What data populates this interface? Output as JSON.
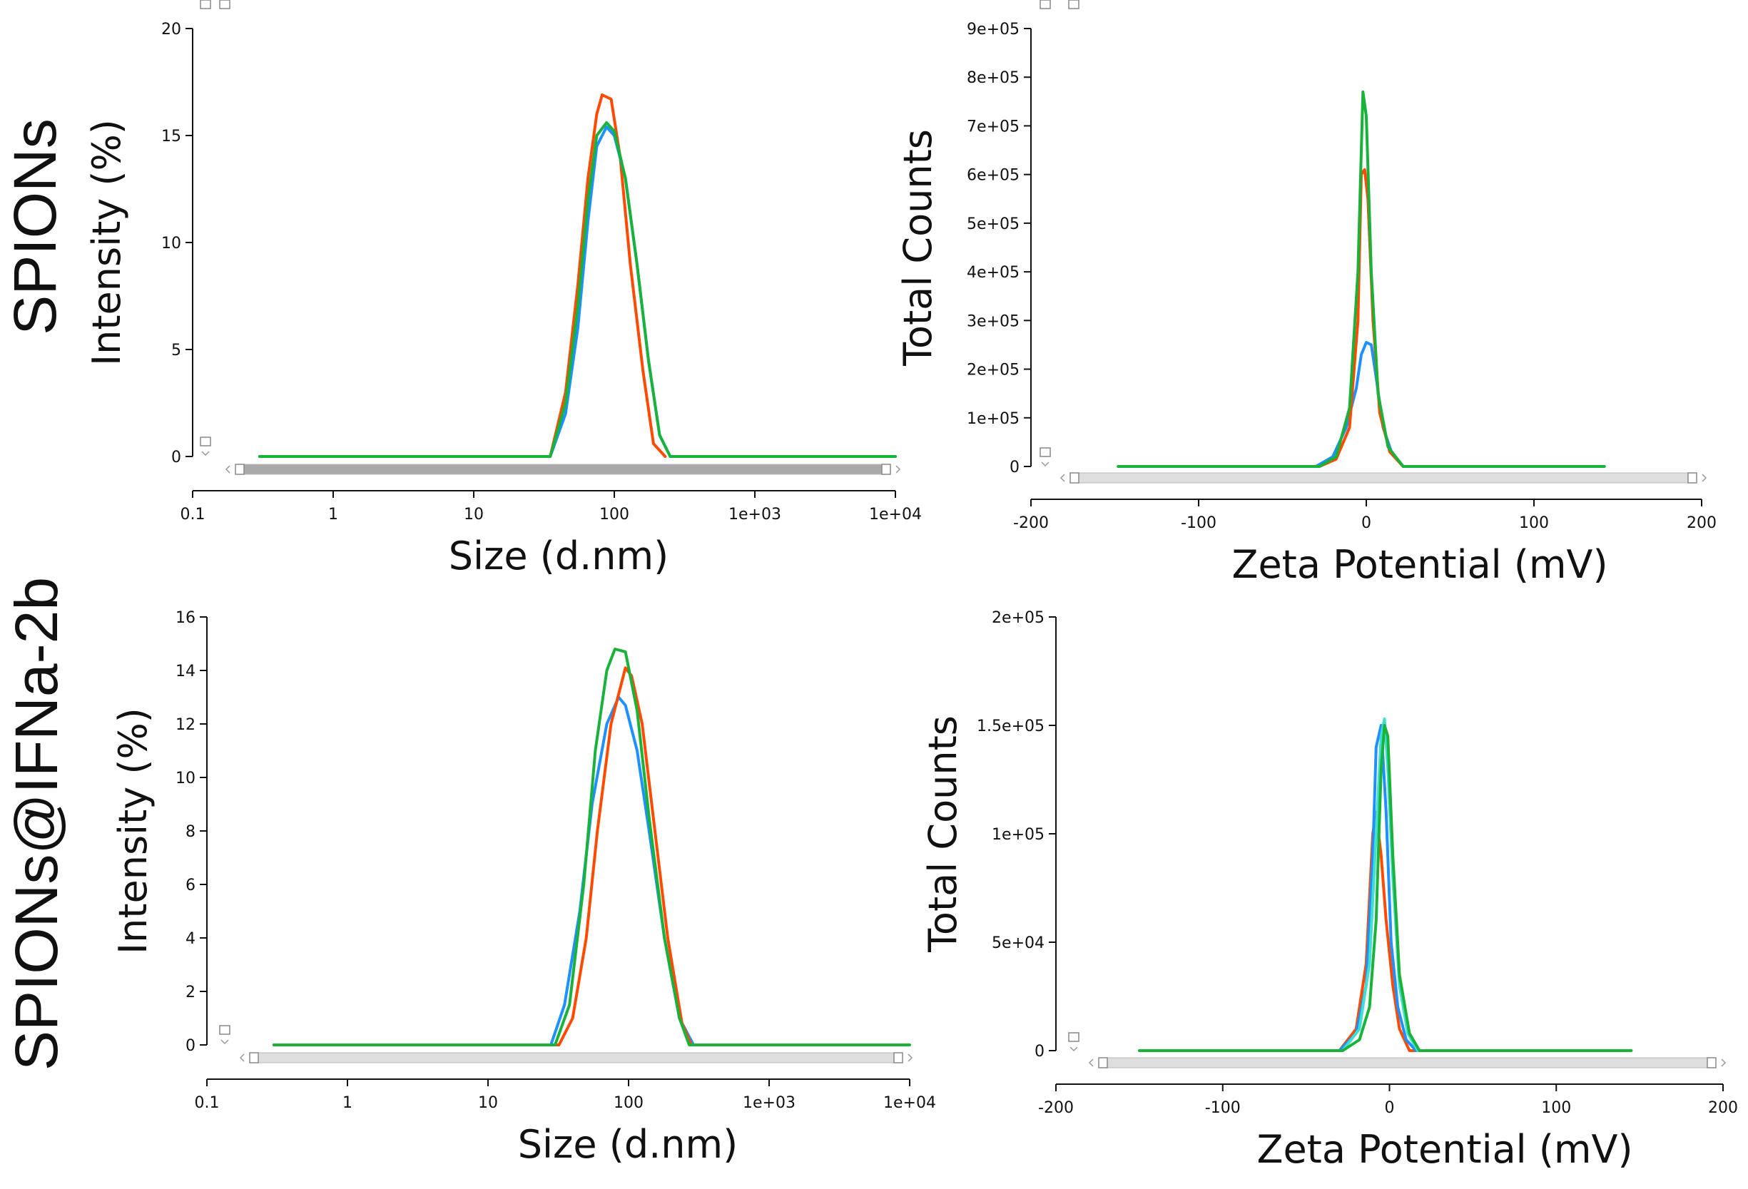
{
  "row_labels": [
    "SPIONs",
    "SPIONs@IFNa-2b"
  ],
  "colors": {
    "red": "#ff4a00",
    "blue": "#1e90ff",
    "green": "#19b23a",
    "cyan": "#40e0d0",
    "axis": "#111111",
    "scrollbar_dark": "#a9a9a9",
    "scrollbar_light": "#dedede"
  },
  "chart_data": [
    {
      "id": "spions-size",
      "type": "line",
      "xscale": "log",
      "xlabel": "Size (d.nm)",
      "ylabel": "Intensity (%)",
      "xlim": [
        0.1,
        10000
      ],
      "ylim": [
        0,
        20
      ],
      "xticks": [
        0.1,
        1,
        10,
        100,
        1000,
        10000
      ],
      "xtick_labels": [
        "0.1",
        "1",
        "10",
        "100",
        "1e+03",
        "1e+04"
      ],
      "yticks": [
        0,
        5,
        10,
        15,
        20
      ],
      "ytick_labels": [
        "0",
        "5",
        "10",
        "15",
        "20"
      ],
      "series": [
        {
          "color": "red",
          "x": [
            0.3,
            35,
            45,
            55,
            65,
            75,
            82,
            95,
            110,
            130,
            160,
            190,
            230
          ],
          "y": [
            0,
            0,
            3,
            8,
            13,
            16,
            16.9,
            16.7,
            14,
            9,
            4,
            0.6,
            0
          ]
        },
        {
          "color": "blue",
          "x": [
            0.3,
            35,
            45,
            55,
            65,
            75,
            88,
            100,
            120,
            145,
            175,
            210,
            250
          ],
          "y": [
            0,
            0,
            2,
            6,
            11,
            14.5,
            15.4,
            15,
            13,
            9,
            4.5,
            1,
            0
          ]
        },
        {
          "color": "green",
          "x": [
            0.3,
            35,
            45,
            55,
            65,
            75,
            88,
            100,
            120,
            145,
            175,
            210,
            250,
            10000
          ],
          "y": [
            0,
            0,
            2.5,
            7,
            12,
            15,
            15.6,
            15.2,
            13,
            9,
            4.5,
            1,
            0,
            0
          ]
        }
      ]
    },
    {
      "id": "spions-zeta",
      "type": "line",
      "xlabel": "Zeta Potential (mV)",
      "ylabel": "Total Counts",
      "xlim": [
        -200,
        200
      ],
      "ylim": [
        0,
        900000
      ],
      "xticks": [
        -200,
        -100,
        0,
        100,
        200
      ],
      "xtick_labels": [
        "-200",
        "-100",
        "0",
        "100",
        "200"
      ],
      "yticks": [
        0,
        100000,
        200000,
        300000,
        400000,
        500000,
        600000,
        700000,
        800000,
        900000
      ],
      "ytick_labels": [
        "0",
        "1e+05",
        "2e+05",
        "3e+05",
        "4e+05",
        "5e+05",
        "6e+05",
        "7e+05",
        "8e+05",
        "9e+05"
      ],
      "series": [
        {
          "color": "blue",
          "x": [
            -30,
            -20,
            -12,
            -6,
            -3,
            0,
            3,
            6,
            10,
            15,
            22
          ],
          "y": [
            0,
            20000,
            80000,
            160000,
            230000,
            255000,
            250000,
            180000,
            80000,
            30000,
            0
          ]
        },
        {
          "color": "red",
          "x": [
            -28,
            -18,
            -10,
            -5,
            -3,
            -1,
            1,
            4,
            8,
            14,
            22
          ],
          "y": [
            0,
            15000,
            80000,
            300000,
            600000,
            610000,
            550000,
            300000,
            110000,
            30000,
            0
          ]
        },
        {
          "color": "green",
          "x": [
            -148,
            -28,
            -18,
            -10,
            -5,
            -2,
            0,
            3,
            7,
            13,
            22,
            142
          ],
          "y": [
            0,
            0,
            20000,
            120000,
            400000,
            770000,
            720000,
            400000,
            150000,
            40000,
            0,
            0
          ]
        }
      ]
    },
    {
      "id": "ifna-size",
      "type": "line",
      "xscale": "log",
      "xlabel": "Size (d.nm)",
      "ylabel": "Intensity (%)",
      "xlim": [
        0.1,
        10000
      ],
      "ylim": [
        0,
        16
      ],
      "xticks": [
        0.1,
        1,
        10,
        100,
        1000,
        10000
      ],
      "xtick_labels": [
        "0.1",
        "1",
        "10",
        "100",
        "1e+03",
        "1e+04"
      ],
      "yticks": [
        0,
        2,
        4,
        6,
        8,
        10,
        12,
        14,
        16
      ],
      "ytick_labels": [
        "0",
        "2",
        "4",
        "6",
        "8",
        "10",
        "12",
        "14",
        "16"
      ],
      "series": [
        {
          "color": "blue",
          "x": [
            0.3,
            28,
            35,
            45,
            55,
            70,
            85,
            95,
            115,
            140,
            180,
            230,
            290
          ],
          "y": [
            0,
            0,
            1.5,
            5,
            9,
            12,
            13,
            12.7,
            11,
            8,
            4,
            1,
            0
          ]
        },
        {
          "color": "red",
          "x": [
            0.3,
            32,
            40,
            50,
            60,
            75,
            95,
            105,
            125,
            150,
            190,
            240,
            280
          ],
          "y": [
            0,
            0,
            1,
            4,
            8,
            12,
            14.1,
            13.8,
            12,
            8.5,
            4,
            0.8,
            0
          ]
        },
        {
          "color": "green",
          "x": [
            0.3,
            30,
            38,
            48,
            58,
            70,
            80,
            95,
            115,
            140,
            180,
            230,
            270,
            10000
          ],
          "y": [
            0,
            0,
            1.5,
            6,
            11,
            14,
            14.8,
            14.7,
            12.5,
            8.5,
            4,
            1,
            0,
            0
          ]
        }
      ]
    },
    {
      "id": "ifna-zeta",
      "type": "line",
      "xlabel": "Zeta Potential (mV)",
      "ylabel": "Total Counts",
      "xlim": [
        -200,
        200
      ],
      "ylim": [
        0,
        200000
      ],
      "xticks": [
        -200,
        -100,
        0,
        100,
        200
      ],
      "xtick_labels": [
        "-200",
        "-100",
        "0",
        "100",
        "200"
      ],
      "yticks": [
        0,
        50000,
        100000,
        150000,
        200000
      ],
      "ytick_labels": [
        "0",
        "5e+04",
        "1e+05",
        "1.5e+05",
        "2e+05"
      ],
      "series": [
        {
          "color": "red",
          "x": [
            -30,
            -20,
            -14,
            -10,
            -8,
            -5,
            -2,
            2,
            6,
            12,
            18
          ],
          "y": [
            0,
            10000,
            40000,
            100000,
            110000,
            90000,
            60000,
            30000,
            10000,
            0,
            0
          ]
        },
        {
          "color": "blue",
          "x": [
            -30,
            -20,
            -14,
            -10,
            -8,
            -5,
            -2,
            1,
            5,
            10,
            16,
            22
          ],
          "y": [
            0,
            8000,
            30000,
            90000,
            140000,
            150000,
            110000,
            50000,
            20000,
            5000,
            0,
            0
          ]
        },
        {
          "color": "cyan",
          "x": [
            -28,
            -18,
            -12,
            -8,
            -5,
            -3,
            -1,
            2,
            6,
            11,
            17
          ],
          "y": [
            0,
            10000,
            40000,
            100000,
            145000,
            153000,
            130000,
            80000,
            30000,
            8000,
            0
          ]
        },
        {
          "color": "green",
          "x": [
            -150,
            -28,
            -18,
            -12,
            -8,
            -5,
            -3,
            -1,
            2,
            6,
            12,
            18,
            145
          ],
          "y": [
            0,
            0,
            5000,
            20000,
            60000,
            130000,
            150000,
            145000,
            90000,
            35000,
            8000,
            0,
            0
          ]
        }
      ]
    }
  ]
}
